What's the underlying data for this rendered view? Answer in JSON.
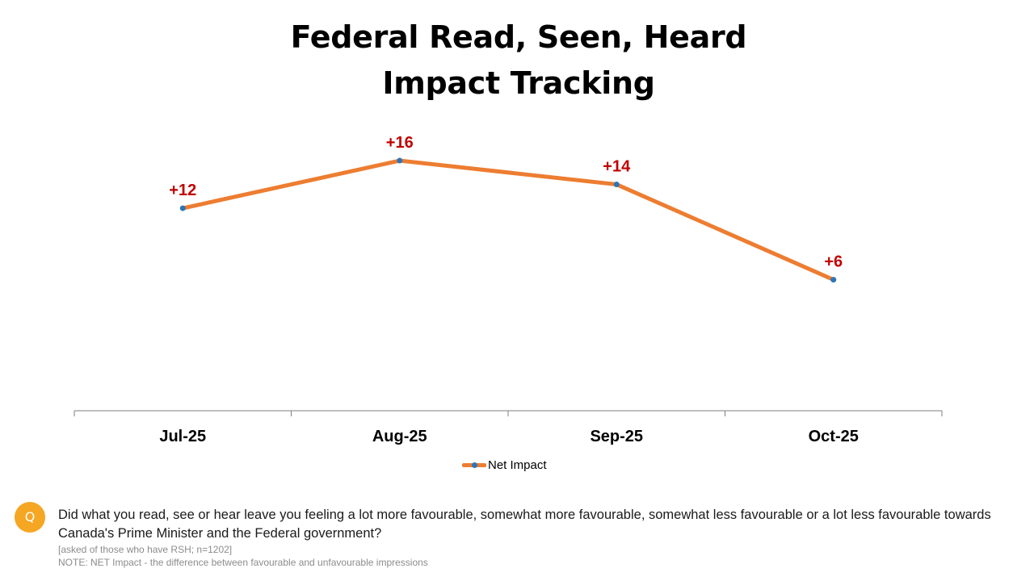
{
  "title_lines": [
    "Federal Read, Seen, Heard",
    "Impact Tracking"
  ],
  "chart_data": {
    "type": "line",
    "title": "Federal Read, Seen, Heard Impact Tracking",
    "categories": [
      "Jul-25",
      "Aug-25",
      "Sep-25",
      "Oct-25"
    ],
    "series": [
      {
        "name": "Net Impact",
        "values": [
          12,
          16,
          14,
          6
        ],
        "labels": [
          "+12",
          "+16",
          "+14",
          "+6"
        ],
        "line_color": "#ED7D31",
        "marker_color": "#2E75B6",
        "label_color": "#C00000"
      }
    ],
    "xlabel": "",
    "ylabel": "",
    "ylim": [
      -5,
      20
    ],
    "grid": false,
    "legend": "bottom"
  },
  "footer": {
    "badge": "Q",
    "question": "Did what you read, see or hear leave you feeling a lot more favourable, somewhat more favourable, somewhat less favourable or a lot less favourable towards Canada's Prime Minister and the Federal government?",
    "note1": "[asked of those who have RSH; n=1202]",
    "note2": "NOTE: NET Impact - the difference between favourable and unfavourable impressions"
  },
  "colors": {
    "line": "#ED7D31",
    "marker": "#2E75B6",
    "label": "#C00000",
    "badge": "#F5A623"
  }
}
